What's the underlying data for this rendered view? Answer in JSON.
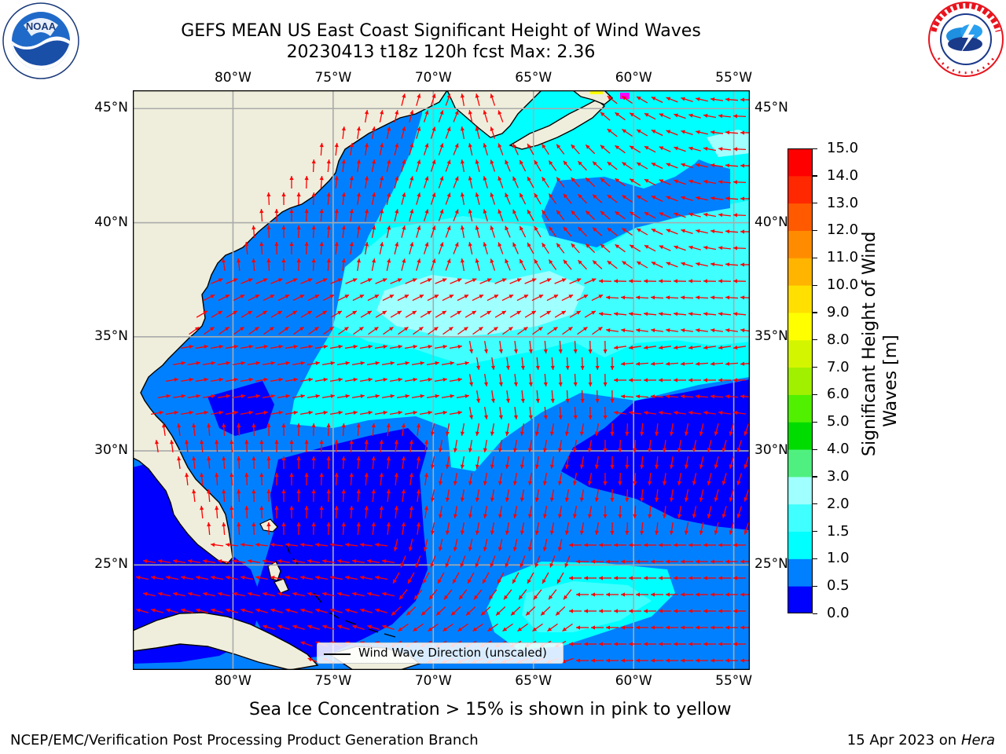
{
  "header": {
    "title_line1": "GEFS MEAN US East Coast Significant Height of Wind Waves",
    "title_line2": "20230413 t18z 120h fcst   Max: 2.36"
  },
  "logos": {
    "left": {
      "name": "noaa-logo",
      "text": "NOAA",
      "ring_text": "NATIONAL OCEANIC AND ATMOSPHERIC ADMINISTRATION · U.S. DEPARTMENT OF COMMERCE"
    },
    "right": {
      "name": "nws-logo",
      "ring_text": "NATIONAL WEATHER SERVICE"
    }
  },
  "map": {
    "lon_labels": [
      "80°W",
      "75°W",
      "70°W",
      "65°W",
      "60°W",
      "55°W"
    ],
    "lat_labels": [
      "45°N",
      "40°N",
      "35°N",
      "30°N",
      "25°N"
    ],
    "lon_values": [
      -80,
      -75,
      -70,
      -65,
      -60,
      -55
    ],
    "lat_values": [
      45,
      40,
      35,
      30,
      25
    ],
    "extent": {
      "lon": [
        -85,
        -54.2
      ],
      "lat": [
        20.4,
        45.8
      ]
    },
    "legend_label": "Wind Wave Direction (unscaled)",
    "land_color": "#efeedc",
    "vector_color": "#ff0000",
    "gridline_color": "#aaaaaa"
  },
  "colorbar": {
    "title_line1": "Significant Height of Wind",
    "title_line2": "Waves [m]",
    "tick_labels": [
      "0.0",
      "0.5",
      "1.0",
      "1.5",
      "2.0",
      "3.0",
      "4.0",
      "5.0",
      "6.0",
      "7.0",
      "8.0",
      "9.0",
      "10.0",
      "11.0",
      "12.0",
      "13.0",
      "14.0",
      "15.0"
    ],
    "colors": [
      "#0000ff",
      "#0080ff",
      "#00ffff",
      "#40ffff",
      "#a0ffff",
      "#50f080",
      "#00dc00",
      "#50f000",
      "#a0f000",
      "#d4f500",
      "#ffff00",
      "#ffe000",
      "#ffb400",
      "#ff8c00",
      "#ff5a00",
      "#ff2800",
      "#ff0000"
    ]
  },
  "notes": {
    "ice": "Sea Ice Concentration > 15% is shown in pink to yellow",
    "org": "NCEP/EMC/Verification Post Processing Product Generation Branch",
    "date": "15 Apr 2023 on ",
    "machine": "Hera"
  }
}
